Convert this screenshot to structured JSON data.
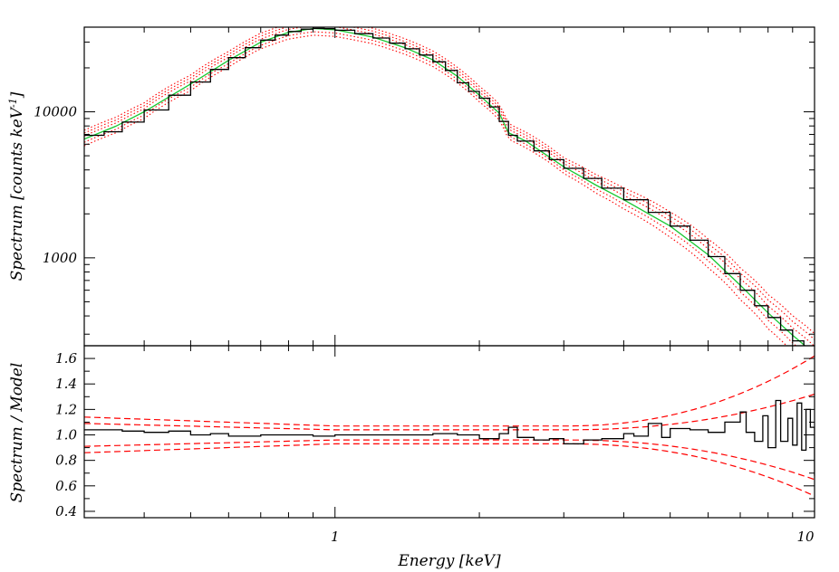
{
  "chart_data": [
    {
      "type": "line",
      "panel": "top",
      "ylabel": "Spectrum [counts keV",
      "ylabel_sup": "-1",
      "ylabel_close": "]",
      "xscale": "log",
      "yscale": "log",
      "xlim": [
        0.3,
        10
      ],
      "ylim": [
        250,
        38000
      ],
      "ytick_labels": [
        {
          "value": 1000,
          "label": "1000"
        },
        {
          "value": 10000,
          "label": "10000"
        }
      ],
      "series": [
        {
          "role": "data",
          "color": "#000000",
          "style": "steps",
          "x": [
            0.3,
            0.33,
            0.36,
            0.4,
            0.45,
            0.5,
            0.55,
            0.6,
            0.65,
            0.7,
            0.75,
            0.8,
            0.85,
            0.9,
            0.95,
            1.0,
            1.1,
            1.2,
            1.3,
            1.4,
            1.5,
            1.6,
            1.7,
            1.8,
            1.9,
            2.0,
            2.1,
            2.2,
            2.3,
            2.4,
            2.6,
            2.8,
            3.0,
            3.3,
            3.6,
            4.0,
            4.5,
            5.0,
            5.5,
            6.0,
            6.5,
            7.0,
            7.5,
            8.0,
            8.5,
            9.0,
            9.5,
            10.0
          ],
          "y": [
            6900,
            7300,
            8500,
            10300,
            13000,
            16000,
            19500,
            23500,
            27500,
            31000,
            33500,
            35500,
            36800,
            37300,
            37100,
            36200,
            34300,
            32000,
            29500,
            27000,
            24500,
            22000,
            19200,
            15800,
            13800,
            12400,
            10800,
            8600,
            6900,
            6300,
            5400,
            4700,
            4100,
            3500,
            3000,
            2500,
            2050,
            1650,
            1320,
            1020,
            780,
            600,
            470,
            390,
            320,
            270,
            230,
            165
          ]
        },
        {
          "role": "model",
          "color": "#19c832",
          "style": "solid",
          "x": [
            0.3,
            0.35,
            0.4,
            0.5,
            0.6,
            0.7,
            0.8,
            0.9,
            1.0,
            1.2,
            1.4,
            1.6,
            1.8,
            2.0,
            2.2,
            2.3,
            2.5,
            3.0,
            3.5,
            4.0,
            5.0,
            6.0,
            7.0,
            8.0,
            9.0,
            10.0
          ],
          "y": [
            6500,
            8000,
            10000,
            15500,
            22500,
            30000,
            35000,
            37200,
            36500,
            32500,
            27500,
            22700,
            17500,
            13000,
            9800,
            7200,
            6300,
            4200,
            3150,
            2500,
            1650,
            1050,
            650,
            420,
            295,
            220
          ]
        }
      ],
      "envelopes": {
        "role": "model-uncertainty",
        "color": "#ff0000",
        "style": "dotted",
        "factors": [
          0.9,
          0.95,
          1.05,
          1.1,
          1.15
        ],
        "widen_above_kev": 3,
        "widen_max": 0.25
      }
    },
    {
      "type": "line",
      "panel": "bottom",
      "xlabel": "Energy [keV]",
      "ylabel": "Spectrum / Model",
      "xscale": "log",
      "xlim": [
        0.3,
        10
      ],
      "ylim": [
        0.35,
        1.7
      ],
      "xtick_labels": [
        {
          "value": 1,
          "label": "1"
        },
        {
          "value": 10,
          "label": "10"
        }
      ],
      "ytick_labels": [
        {
          "value": 0.4,
          "label": "0.4"
        },
        {
          "value": 0.6,
          "label": "0.6"
        },
        {
          "value": 0.8,
          "label": "0.8"
        },
        {
          "value": 1.0,
          "label": "1.0"
        },
        {
          "value": 1.2,
          "label": "1.2"
        },
        {
          "value": 1.4,
          "label": "1.4"
        },
        {
          "value": 1.6,
          "label": "1.6"
        }
      ],
      "series": [
        {
          "role": "ratio",
          "color": "#000000",
          "style": "steps",
          "x": [
            0.3,
            0.33,
            0.36,
            0.4,
            0.45,
            0.5,
            0.55,
            0.6,
            0.7,
            0.8,
            0.9,
            1.0,
            1.2,
            1.4,
            1.6,
            1.8,
            2.0,
            2.2,
            2.3,
            2.4,
            2.6,
            2.8,
            3.0,
            3.3,
            3.6,
            4.0,
            4.2,
            4.5,
            4.8,
            5.0,
            5.5,
            6.0,
            6.5,
            7.0,
            7.2,
            7.5,
            7.8,
            8.0,
            8.3,
            8.5,
            8.8,
            9.0,
            9.2,
            9.4,
            9.6,
            9.8,
            10.0
          ],
          "y": [
            1.04,
            1.04,
            1.03,
            1.02,
            1.03,
            1.0,
            1.01,
            0.99,
            1.0,
            1.0,
            0.99,
            1.0,
            1.0,
            1.0,
            1.01,
            1.0,
            0.97,
            1.01,
            1.06,
            0.98,
            0.96,
            0.97,
            0.93,
            0.96,
            0.97,
            1.01,
            0.99,
            1.09,
            0.98,
            1.05,
            1.04,
            1.02,
            1.1,
            1.18,
            1.02,
            0.95,
            1.15,
            0.9,
            1.27,
            0.95,
            1.13,
            0.92,
            1.25,
            0.88,
            1.2,
            1.06,
            0.68
          ]
        }
      ],
      "envelopes": {
        "role": "ratio-uncertainty",
        "color": "#ff0000",
        "style": "dashed",
        "low_kev_offsets": [
          -0.14,
          -0.09,
          0.09,
          0.14
        ],
        "mid_kev_offsets": [
          -0.07,
          -0.04,
          0.04,
          0.07
        ],
        "high_kev_offsets": [
          -0.48,
          -0.35,
          0.32,
          0.62
        ]
      }
    }
  ]
}
